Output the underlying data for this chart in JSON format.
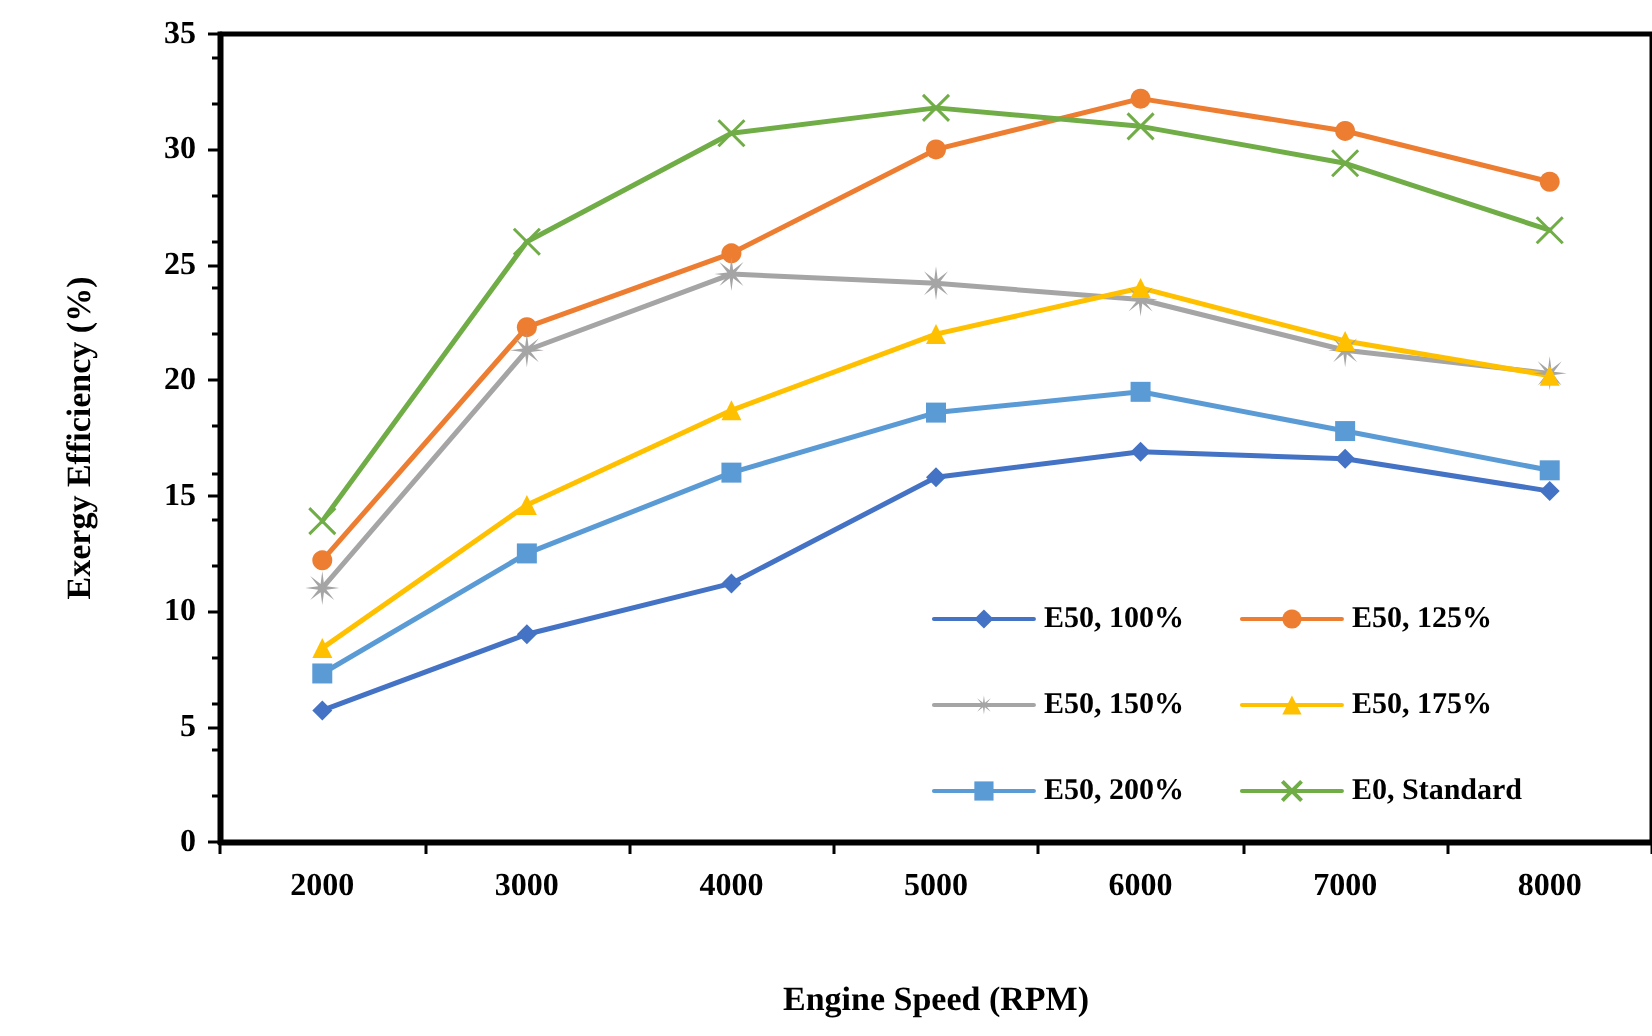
{
  "chart_data": {
    "type": "line",
    "xlabel": "Engine Speed (RPM)",
    "ylabel": "Exergy Efficiency (%)",
    "categories": [
      "2000",
      "3000",
      "4000",
      "5000",
      "6000",
      "7000",
      "8000"
    ],
    "series": [
      {
        "name": "E50, 100%",
        "color": "#4472c4",
        "marker": "diamond",
        "values": [
          5.7,
          9.0,
          11.2,
          15.8,
          16.9,
          16.6,
          15.2
        ]
      },
      {
        "name": "E50, 125%",
        "color": "#ed7d31",
        "marker": "circle",
        "values": [
          12.2,
          22.3,
          25.5,
          30.0,
          32.2,
          30.8,
          28.6
        ]
      },
      {
        "name": "E50, 150%",
        "color": "#a5a5a5",
        "marker": "star",
        "values": [
          11.0,
          21.3,
          24.6,
          24.2,
          23.5,
          21.3,
          20.3
        ]
      },
      {
        "name": "E50, 175%",
        "color": "#ffc000",
        "marker": "triangle",
        "values": [
          8.4,
          14.6,
          18.7,
          22.0,
          24.0,
          21.7,
          20.2
        ]
      },
      {
        "name": "E50, 200%",
        "color": "#5b9bd5",
        "marker": "square",
        "values": [
          7.3,
          12.5,
          16.0,
          18.6,
          19.5,
          17.8,
          16.1
        ]
      },
      {
        "name": "E0, Standard",
        "color": "#70ad47",
        "marker": "cross",
        "values": [
          13.9,
          26.0,
          30.7,
          31.8,
          31.0,
          29.4,
          26.5
        ]
      }
    ],
    "ylim": [
      0,
      35
    ],
    "yticks": [
      0,
      5,
      10,
      15,
      20,
      25,
      30,
      35
    ],
    "grid": false,
    "legend": "bottom right"
  }
}
